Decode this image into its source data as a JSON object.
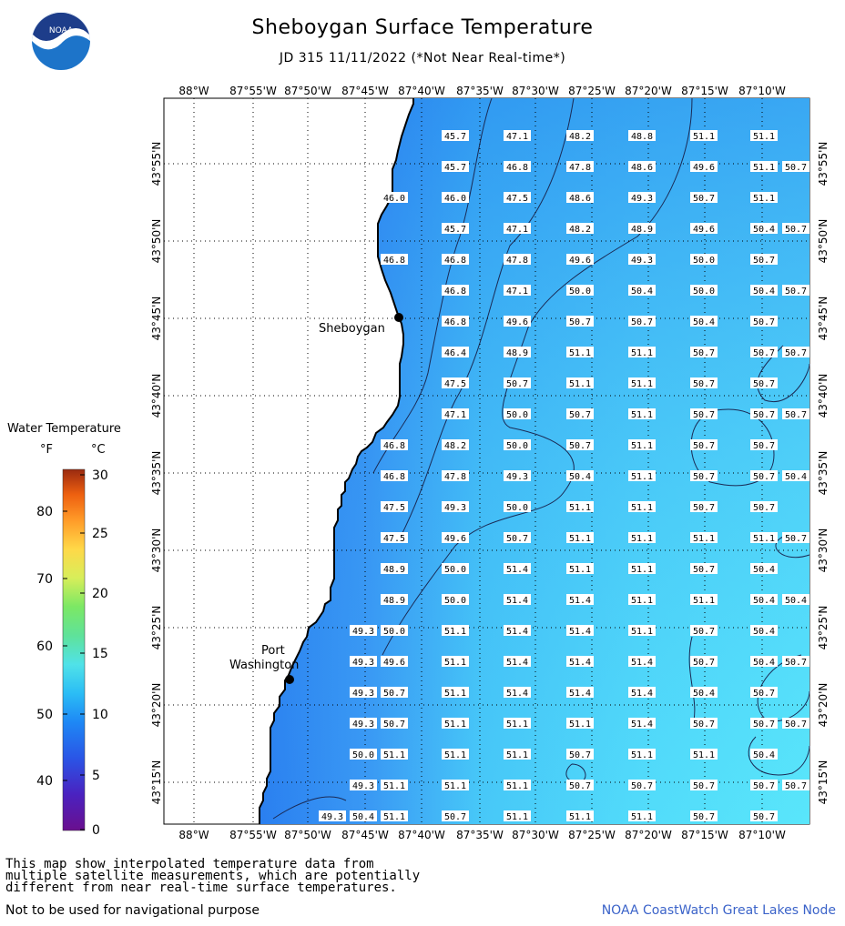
{
  "header": {
    "title": "Sheboygan Surface Temperature",
    "subtitle": "JD 315 11/11/2022 (*Not Near Real-time*)",
    "logo_text": "NOAA"
  },
  "map": {
    "lon_labels": [
      "88°W",
      "87°55'W",
      "87°50'W",
      "87°45'W",
      "87°40'W",
      "87°35'W",
      "87°30'W",
      "87°25'W",
      "87°20'W",
      "87°15'W",
      "87°10'W"
    ],
    "lat_labels": [
      "43°55'N",
      "43°50'N",
      "43°45'N",
      "43°40'N",
      "43°35'N",
      "43°30'N",
      "43°25'N",
      "43°20'N",
      "43°15'N"
    ],
    "cities": [
      {
        "name": "Sheboygan"
      },
      {
        "name_line1": "Port",
        "name_line2": "Washington"
      }
    ],
    "colors": {
      "water_cold": "#2f86f0",
      "water_warm": "#55e0fa",
      "land": "#ffffff",
      "coast": "#000000"
    },
    "temperature_rows": [
      [
        "45.7",
        "47.1",
        "48.2",
        "48.8",
        "51.1",
        "51.1"
      ],
      [
        "45.7",
        "46.8",
        "47.8",
        "48.6",
        "49.6",
        "51.1",
        "50.7"
      ],
      [
        "46.0",
        "46.0",
        "47.5",
        "48.6",
        "49.3",
        "50.7",
        "51.1"
      ],
      [
        "45.7",
        "47.1",
        "48.2",
        "48.9",
        "49.6",
        "50.4",
        "50.7"
      ],
      [
        "46.8",
        "46.8",
        "47.8",
        "49.6",
        "49.3",
        "50.0",
        "50.7"
      ],
      [
        "46.8",
        "47.1",
        "50.0",
        "50.4",
        "50.0",
        "50.4",
        "50.7"
      ],
      [
        "46.8",
        "49.6",
        "50.7",
        "50.7",
        "50.4",
        "50.7"
      ],
      [
        "46.4",
        "48.9",
        "51.1",
        "51.1",
        "50.7",
        "50.7",
        "50.7"
      ],
      [
        "47.5",
        "50.7",
        "51.1",
        "51.1",
        "50.7",
        "50.7"
      ],
      [
        "47.1",
        "50.0",
        "50.7",
        "51.1",
        "50.7",
        "50.7",
        "50.7"
      ],
      [
        "46.8",
        "48.2",
        "50.0",
        "50.7",
        "51.1",
        "50.7",
        "50.7"
      ],
      [
        "46.8",
        "47.8",
        "49.3",
        "50.4",
        "51.1",
        "50.7",
        "50.7",
        "50.4"
      ],
      [
        "47.5",
        "49.3",
        "50.0",
        "51.1",
        "51.1",
        "50.7",
        "50.7"
      ],
      [
        "47.5",
        "49.6",
        "50.7",
        "51.1",
        "51.1",
        "51.1",
        "51.1",
        "50.7"
      ],
      [
        "48.9",
        "50.0",
        "51.4",
        "51.1",
        "51.1",
        "50.7",
        "50.4"
      ],
      [
        "48.9",
        "50.0",
        "51.4",
        "51.4",
        "51.1",
        "51.1",
        "50.4",
        "50.4"
      ],
      [
        "49.3",
        "50.0",
        "51.1",
        "51.4",
        "51.4",
        "51.1",
        "50.7",
        "50.4"
      ],
      [
        "49.3",
        "49.6",
        "51.1",
        "51.4",
        "51.4",
        "51.4",
        "50.7",
        "50.4",
        "50.7"
      ],
      [
        "49.3",
        "50.7",
        "51.1",
        "51.4",
        "51.4",
        "51.4",
        "50.4",
        "50.7"
      ],
      [
        "49.3",
        "50.7",
        "51.1",
        "51.1",
        "51.1",
        "51.4",
        "50.7",
        "50.7",
        "50.7"
      ],
      [
        "50.0",
        "51.1",
        "51.1",
        "51.1",
        "50.7",
        "51.1",
        "51.1",
        "50.4"
      ],
      [
        "49.3",
        "51.1",
        "51.1",
        "51.1",
        "50.7",
        "50.7",
        "50.7",
        "50.7",
        "50.7"
      ],
      [
        "49.3",
        "50.4",
        "51.1",
        "50.7",
        "51.1",
        "51.1",
        "51.1",
        "50.7",
        "50.7"
      ]
    ]
  },
  "legend": {
    "title": "Water Temperature",
    "unit_f": "°F",
    "unit_c": "°C",
    "f_ticks": [
      "80",
      "70",
      "60",
      "50",
      "40"
    ],
    "c_ticks": [
      "30",
      "25",
      "20",
      "15",
      "10",
      "5",
      "0"
    ],
    "gradient": [
      "#6a0f8e",
      "#3a2ed0",
      "#1e7cf5",
      "#2bc3f5",
      "#55e8dc",
      "#66e07a",
      "#c6ee5a",
      "#ffe04a",
      "#ffb030",
      "#ff7a10",
      "#d94a10",
      "#9a2a10"
    ]
  },
  "footer": {
    "note_lines": [
      "This map show interpolated temperature data from",
      "multiple satellite measurements, which are potentially",
      "different from near real-time surface temperatures."
    ],
    "warning": "Not to be used for navigational purpose",
    "credit": "NOAA CoastWatch Great Lakes Node"
  }
}
